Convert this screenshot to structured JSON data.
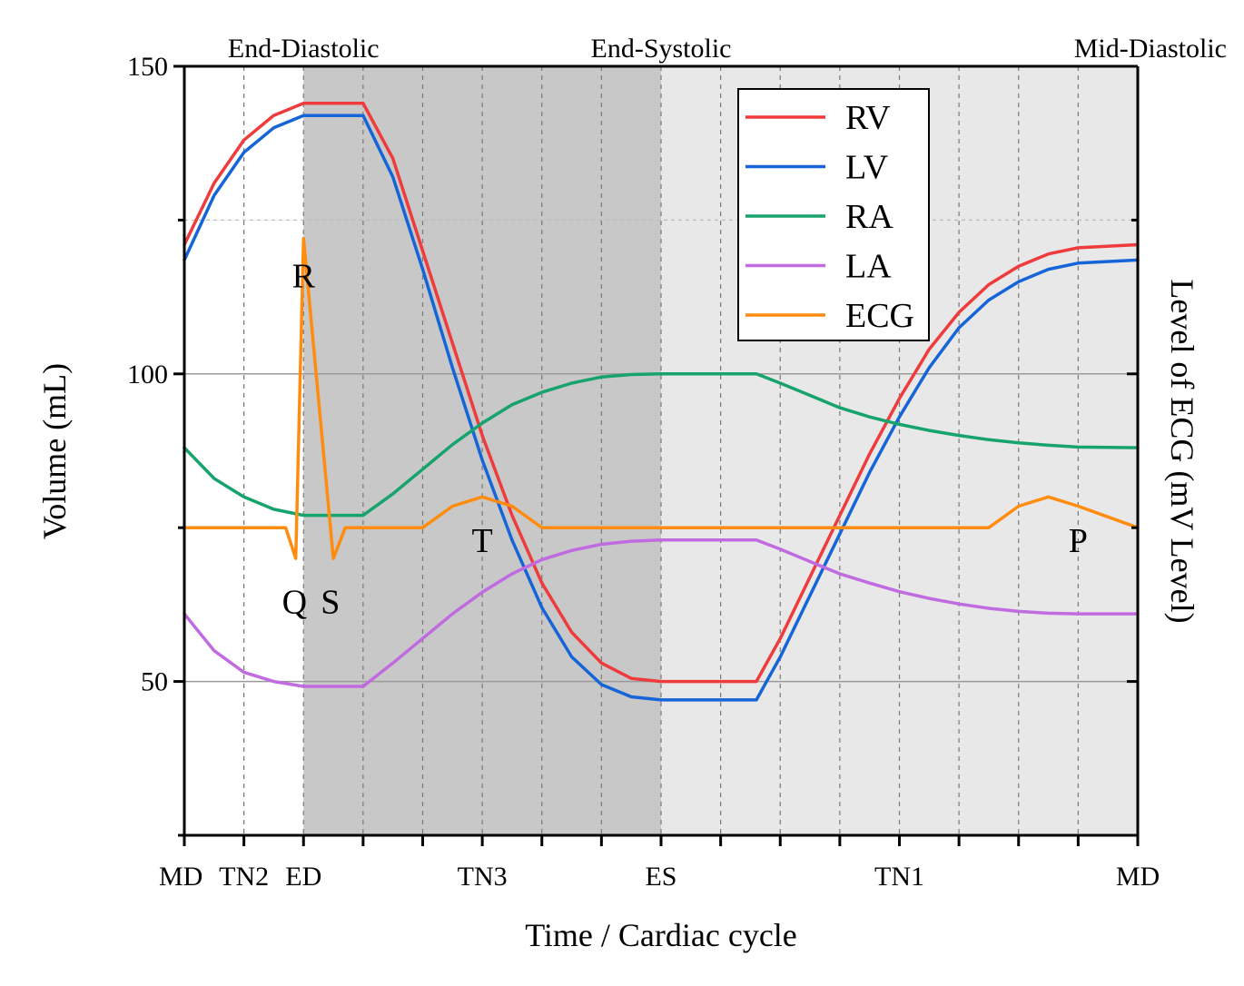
{
  "chart_data": {
    "type": "line",
    "xlabel": "Time / Cardiac cycle",
    "ylabel": "Volume (mL)",
    "y2label": "Level of ECG (mV Level)",
    "xlim": [
      0,
      16
    ],
    "ylim": [
      25,
      150
    ],
    "yticks": [
      50,
      100,
      150
    ],
    "grid_y": [
      50,
      100
    ],
    "grid_y_dashed": [
      125
    ],
    "x_ticks": [
      0,
      1,
      2,
      3,
      4,
      5,
      6,
      7,
      8,
      9,
      10,
      11,
      12,
      13,
      14,
      15,
      16
    ],
    "x_tick_labels": [
      {
        "x": 0,
        "label": "MD"
      },
      {
        "x": 1,
        "label": "TN2"
      },
      {
        "x": 2,
        "label": "ED"
      },
      {
        "x": 5,
        "label": "TN3"
      },
      {
        "x": 8,
        "label": "ES"
      },
      {
        "x": 12,
        "label": "TN1"
      },
      {
        "x": 16,
        "label": "MD"
      }
    ],
    "phase_labels": [
      {
        "x": 2,
        "label": "End-Diastolic"
      },
      {
        "x": 8,
        "label": "End-Systolic"
      },
      {
        "x": 16,
        "label": "Mid-Diastolic"
      }
    ],
    "shaded_regions": [
      {
        "from": 2,
        "to": 8,
        "color": "#c8c8c8"
      },
      {
        "from": 8,
        "to": 16,
        "color": "#e8e8e8"
      }
    ],
    "series": [
      {
        "name": "RV",
        "color": "#ef3b3b",
        "points": [
          [
            0,
            121
          ],
          [
            0.5,
            131
          ],
          [
            1,
            138
          ],
          [
            1.5,
            142
          ],
          [
            2,
            144
          ],
          [
            3,
            144
          ],
          [
            3.5,
            135
          ],
          [
            4,
            120
          ],
          [
            4.5,
            105
          ],
          [
            5,
            90
          ],
          [
            5.5,
            77
          ],
          [
            6,
            66
          ],
          [
            6.5,
            58
          ],
          [
            7,
            53
          ],
          [
            7.5,
            50.5
          ],
          [
            8,
            50
          ],
          [
            9.6,
            50
          ],
          [
            10,
            57
          ],
          [
            10.5,
            67
          ],
          [
            11,
            77
          ],
          [
            11.5,
            87
          ],
          [
            12,
            96
          ],
          [
            12.5,
            104
          ],
          [
            13,
            110
          ],
          [
            13.5,
            114.5
          ],
          [
            14,
            117.5
          ],
          [
            14.5,
            119.5
          ],
          [
            15,
            120.5
          ],
          [
            16,
            121
          ]
        ]
      },
      {
        "name": "LV",
        "color": "#1565d8",
        "points": [
          [
            0,
            118.5
          ],
          [
            0.5,
            129
          ],
          [
            1,
            136
          ],
          [
            1.5,
            140
          ],
          [
            2,
            142
          ],
          [
            3,
            142
          ],
          [
            3.5,
            132
          ],
          [
            4,
            117
          ],
          [
            4.5,
            101
          ],
          [
            5,
            86
          ],
          [
            5.5,
            73
          ],
          [
            6,
            62
          ],
          [
            6.5,
            54
          ],
          [
            7,
            49.5
          ],
          [
            7.5,
            47.5
          ],
          [
            8,
            47
          ],
          [
            9.6,
            47
          ],
          [
            10,
            54
          ],
          [
            10.5,
            64
          ],
          [
            11,
            74
          ],
          [
            11.5,
            84
          ],
          [
            12,
            93
          ],
          [
            12.5,
            101
          ],
          [
            13,
            107.5
          ],
          [
            13.5,
            112
          ],
          [
            14,
            115
          ],
          [
            14.5,
            117
          ],
          [
            15,
            118
          ],
          [
            16,
            118.5
          ]
        ]
      },
      {
        "name": "RA",
        "color": "#17a36c",
        "points": [
          [
            0,
            88
          ],
          [
            0.5,
            83
          ],
          [
            1,
            80
          ],
          [
            1.5,
            78
          ],
          [
            2,
            77
          ],
          [
            3,
            77
          ],
          [
            3.5,
            80.5
          ],
          [
            4,
            84.5
          ],
          [
            4.5,
            88.5
          ],
          [
            5,
            92
          ],
          [
            5.5,
            95
          ],
          [
            6,
            97
          ],
          [
            6.5,
            98.5
          ],
          [
            7,
            99.5
          ],
          [
            7.5,
            99.9
          ],
          [
            8,
            100
          ],
          [
            9.6,
            100
          ],
          [
            10,
            98.5
          ],
          [
            10.5,
            96.5
          ],
          [
            11,
            94.5
          ],
          [
            11.5,
            93
          ],
          [
            12,
            91.8
          ],
          [
            12.5,
            90.8
          ],
          [
            13,
            90
          ],
          [
            13.5,
            89.3
          ],
          [
            14,
            88.8
          ],
          [
            14.5,
            88.4
          ],
          [
            15,
            88.1
          ],
          [
            16,
            88
          ]
        ]
      },
      {
        "name": "LA",
        "color": "#c06be0",
        "points": [
          [
            0,
            61
          ],
          [
            0.5,
            55
          ],
          [
            1,
            51.5
          ],
          [
            1.5,
            50
          ],
          [
            2,
            49.2
          ],
          [
            3,
            49.2
          ],
          [
            3.5,
            53
          ],
          [
            4,
            57
          ],
          [
            4.5,
            61
          ],
          [
            5,
            64.5
          ],
          [
            5.5,
            67.5
          ],
          [
            6,
            69.8
          ],
          [
            6.5,
            71.3
          ],
          [
            7,
            72.3
          ],
          [
            7.5,
            72.8
          ],
          [
            8,
            73
          ],
          [
            9.6,
            73
          ],
          [
            10,
            71.5
          ],
          [
            10.5,
            69.5
          ],
          [
            11,
            67.5
          ],
          [
            11.5,
            66
          ],
          [
            12,
            64.6
          ],
          [
            12.5,
            63.5
          ],
          [
            13,
            62.6
          ],
          [
            13.5,
            61.9
          ],
          [
            14,
            61.4
          ],
          [
            14.5,
            61.1
          ],
          [
            15,
            61
          ],
          [
            16,
            61
          ]
        ]
      },
      {
        "name": "ECG",
        "color": "#ff8c0e",
        "points": [
          [
            0,
            75
          ],
          [
            1.7,
            75
          ],
          [
            1.87,
            70
          ],
          [
            2,
            122
          ],
          [
            2.5,
            70
          ],
          [
            2.7,
            75
          ],
          [
            3,
            75
          ],
          [
            4,
            75
          ],
          [
            4.5,
            78.5
          ],
          [
            5,
            80
          ],
          [
            5.5,
            78.5
          ],
          [
            6,
            75
          ],
          [
            7,
            75
          ],
          [
            13.5,
            75
          ],
          [
            14,
            78.5
          ],
          [
            14.5,
            80
          ],
          [
            15,
            78.5
          ],
          [
            16,
            75
          ]
        ]
      }
    ],
    "wave_labels": [
      {
        "x": 2,
        "y": 116,
        "label": "R"
      },
      {
        "x": 1.85,
        "y": 63,
        "label": "Q"
      },
      {
        "x": 2.45,
        "y": 63,
        "label": "S"
      },
      {
        "x": 5,
        "y": 73,
        "label": "T"
      },
      {
        "x": 15,
        "y": 73,
        "label": "P"
      }
    ],
    "legend": {
      "position": "top-right",
      "entries": [
        {
          "name": "RV",
          "color": "#ef3b3b"
        },
        {
          "name": "LV",
          "color": "#1565d8"
        },
        {
          "name": "RA",
          "color": "#17a36c"
        },
        {
          "name": "LA",
          "color": "#c06be0"
        },
        {
          "name": "ECG",
          "color": "#ff8c0e"
        }
      ]
    }
  }
}
